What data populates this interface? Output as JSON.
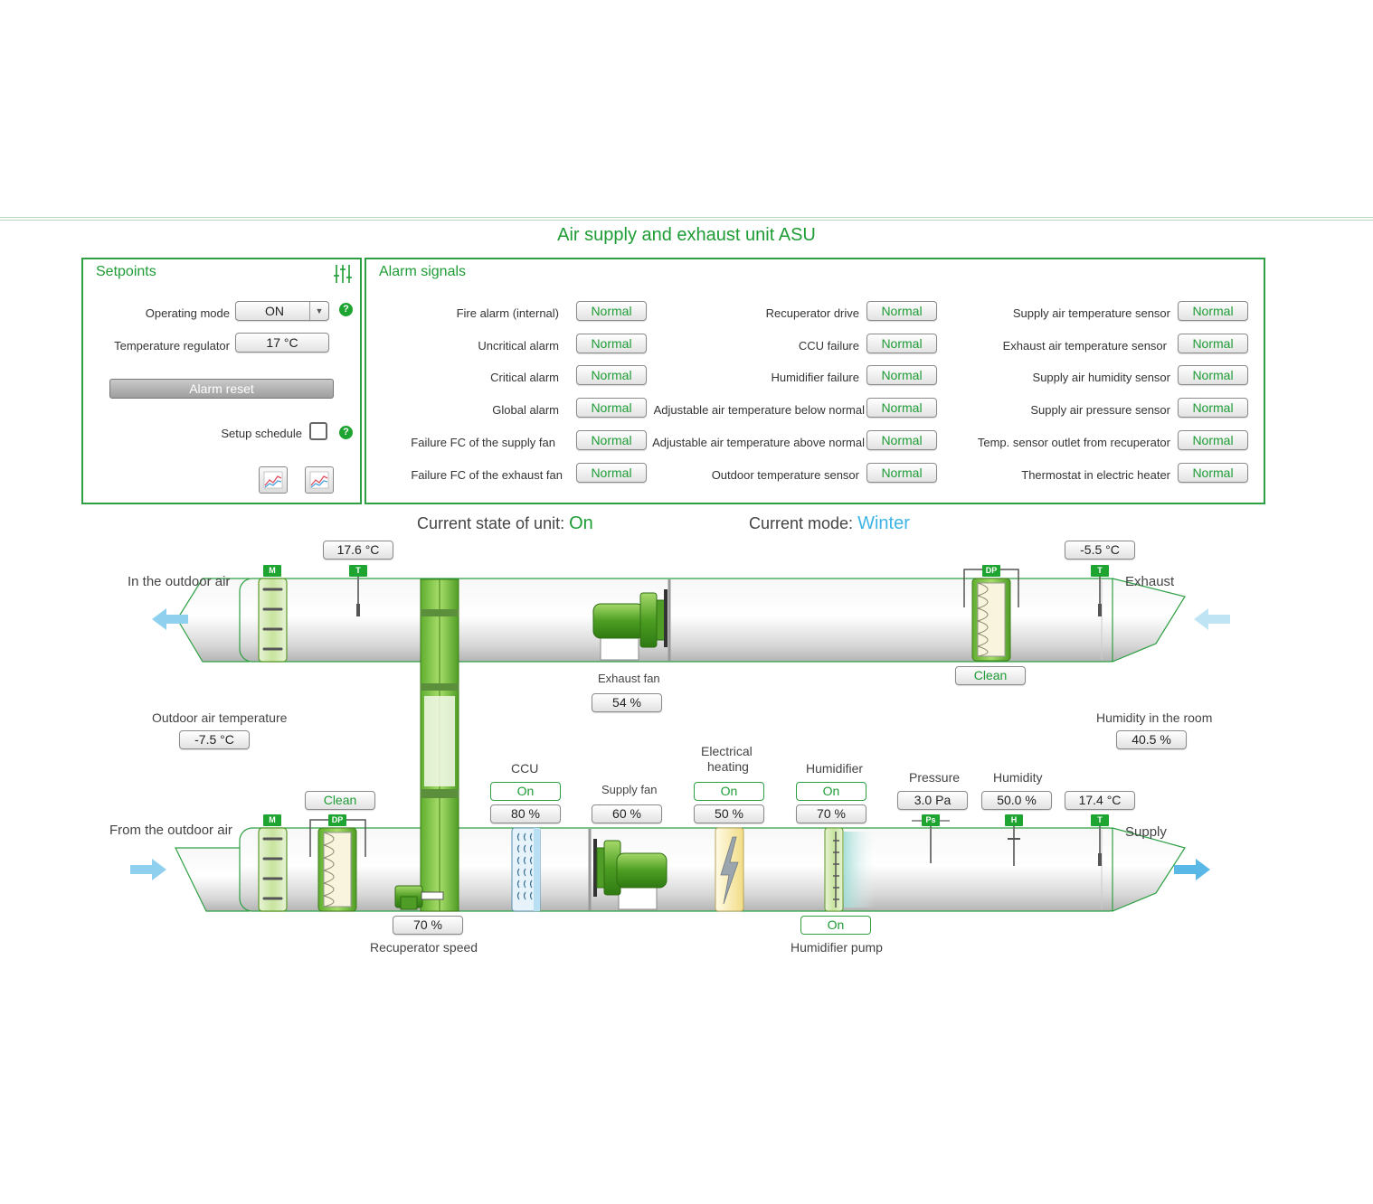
{
  "header": {
    "title": "Air supply and exhaust unit ASU"
  },
  "setpoints": {
    "title": "Setpoints",
    "operating_mode_label": "Operating mode",
    "operating_mode_value": "ON",
    "temp_regulator_label": "Temperature regulator",
    "temp_regulator_value": "17 °C",
    "alarm_reset_label": "Alarm reset",
    "setup_schedule_label": "Setup schedule",
    "help_glyph": "?"
  },
  "alarms": {
    "title": "Alarm signals",
    "columns": [
      [
        {
          "label": "Fire alarm (internal)",
          "value": "Normal"
        },
        {
          "label": "Uncritical alarm",
          "value": "Normal"
        },
        {
          "label": "Critical alarm",
          "value": "Normal"
        },
        {
          "label": "Global alarm",
          "value": "Normal"
        },
        {
          "label": "Failure FC of the supply fan",
          "value": "Normal"
        },
        {
          "label": "Failure FC of the exhaust fan",
          "value": "Normal"
        }
      ],
      [
        {
          "label": "Recuperator drive",
          "value": "Normal"
        },
        {
          "label": "CCU failure",
          "value": "Normal"
        },
        {
          "label": "Humidifier failure",
          "value": "Normal"
        },
        {
          "label": "Adjustable air temperature below normal",
          "value": "Normal"
        },
        {
          "label": "Adjustable air temperature above normal",
          "value": "Normal"
        },
        {
          "label": "Outdoor temperature sensor",
          "value": "Normal"
        }
      ],
      [
        {
          "label": "Supply air temperature sensor",
          "value": "Normal"
        },
        {
          "label": "Exhaust air temperature sensor",
          "value": "Normal"
        },
        {
          "label": "Supply air humidity sensor",
          "value": "Normal"
        },
        {
          "label": "Supply air pressure sensor",
          "value": "Normal"
        },
        {
          "label": "Temp. sensor outlet from recuperator",
          "value": "Normal"
        },
        {
          "label": "Thermostat in electric heater",
          "value": "Normal"
        }
      ]
    ]
  },
  "status": {
    "state_label": "Current state of unit:",
    "state_value": "On",
    "mode_label": "Current mode:",
    "mode_value": "Winter",
    "state_color": "#1e9c35",
    "mode_color": "#3cb4e5"
  },
  "diagram": {
    "exhaust_duct": {
      "left_label": "In the outdoor air",
      "right_label": "Exhaust",
      "temp_after_recup": "17.6 °C",
      "exhaust_temp": "-5.5 °C",
      "filter_state": "Clean",
      "fan_label": "Exhaust fan",
      "fan_speed": "54 %"
    },
    "outdoor_temp_label": "Outdoor air temperature",
    "outdoor_temp_value": "-7.5 °C",
    "room_humidity_label": "Humidity in the room",
    "room_humidity_value": "40.5 %",
    "supply_duct": {
      "left_label": "From the outdoor air",
      "right_label": "Supply",
      "filter_state": "Clean",
      "recup_speed": "70 %",
      "recup_label": "Recuperator speed",
      "ccu_label": "CCU",
      "ccu_state": "On",
      "ccu_value": "80 %",
      "fan_label": "Supply fan",
      "fan_speed": "60 %",
      "heater_label_1": "Electrical",
      "heater_label_2": "heating",
      "heater_state": "On",
      "heater_value": "50 %",
      "humidifier_label": "Humidifier",
      "humidifier_state": "On",
      "humidifier_value": "70 %",
      "pump_state": "On",
      "pump_label": "Humidifier pump",
      "pressure_label": "Pressure",
      "pressure_value": "3.0 Pa",
      "humidity_label": "Humidity",
      "humidity_value": "50.0 %",
      "supply_temp": "17.4 °C"
    },
    "tags": {
      "damper": "M",
      "temp": "T",
      "dp": "DP",
      "ps": "Ps",
      "hum": "H"
    }
  },
  "colors": {
    "accent": "#1e9c35",
    "panel_border": "#2ea043",
    "air_arrow": "#8fd0ef"
  }
}
